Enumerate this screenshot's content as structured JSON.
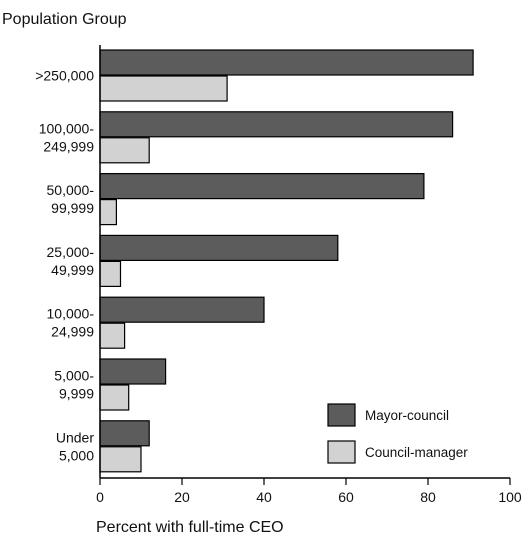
{
  "chart_data": {
    "type": "bar",
    "orientation": "horizontal",
    "title": "Population Group",
    "xlabel": "Percent with full-time CEO",
    "ylabel": "",
    "xlim": [
      0,
      100
    ],
    "xticks": [
      "0",
      "20",
      "40",
      "60",
      "80",
      "100"
    ],
    "categories": [
      [
        ">250,000"
      ],
      [
        "100,000-",
        "249,999"
      ],
      [
        "50,000-",
        "99,999"
      ],
      [
        "25,000-",
        "49,999"
      ],
      [
        "10,000-",
        "24,999"
      ],
      [
        "5,000-",
        "9,999"
      ],
      [
        "Under",
        "5,000"
      ]
    ],
    "series": [
      {
        "name": "Mayor-council",
        "color": "#5c5c5c",
        "values": [
          91,
          86,
          79,
          58,
          40,
          16,
          12
        ]
      },
      {
        "name": "Council-manager",
        "color": "#d2d2d2",
        "values": [
          31,
          12,
          4,
          5,
          6,
          7,
          10
        ]
      }
    ],
    "grid": false,
    "legend_position": "bottom-right"
  }
}
